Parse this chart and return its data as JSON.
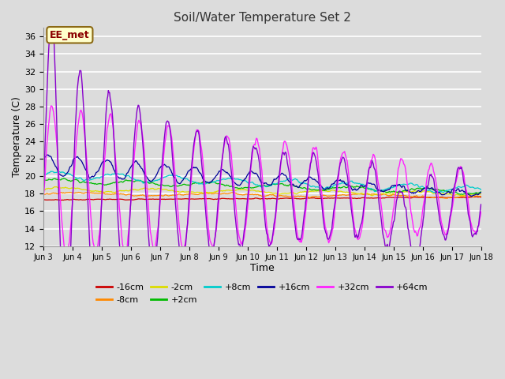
{
  "title": "Soil/Water Temperature Set 2",
  "xlabel": "Time",
  "ylabel": "Temperature (C)",
  "ylim": [
    12,
    37
  ],
  "yticks": [
    12,
    14,
    16,
    18,
    20,
    22,
    24,
    26,
    28,
    30,
    32,
    34,
    36
  ],
  "background_color": "#dcdcdc",
  "plot_bg_color": "#dcdcdc",
  "annotation_text": "EE_met",
  "annotation_bg": "#ffffcc",
  "annotation_border": "#8b6914",
  "series_colors": {
    "-16cm": "#cc0000",
    "-8cm": "#ff8800",
    "-2cm": "#dddd00",
    "+2cm": "#00bb00",
    "+8cm": "#00cccc",
    "+16cm": "#000099",
    "+32cm": "#ff22ff",
    "+64cm": "#8800cc"
  },
  "legend_order": [
    "-16cm",
    "-8cm",
    "-2cm",
    "+2cm",
    "+8cm",
    "+16cm",
    "+32cm",
    "+64cm"
  ],
  "n_days": 15,
  "points_per_day": 48,
  "start_day": 3
}
